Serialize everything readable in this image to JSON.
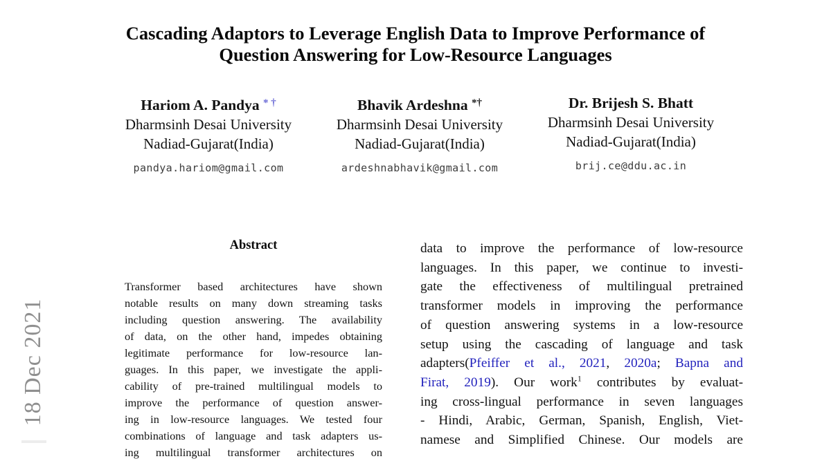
{
  "colors": {
    "link_blue": "#2323bd",
    "stamp_gray": "#8f8f8f",
    "marker_blue": "#6b6bd6",
    "marker_black": "#1a1a1a"
  },
  "arxiv_stamp": {
    "text": "18 Dec 2021"
  },
  "title": {
    "line1": "Cascading Adaptors to Leverage English Data to Improve Performance of",
    "line2": "Question Answering for Low-Resource Languages"
  },
  "authors": [
    {
      "name": "Hariom A. Pandya",
      "markers": "* †",
      "marker_color": "#6b6bd6",
      "affiliation": "Dharmsinh Desai University",
      "location": "Nadiad-Gujarat(India)",
      "email": "pandya.hariom@gmail.com"
    },
    {
      "name": "Bhavik Ardeshna",
      "markers": "*†",
      "marker_color": "#1a1a1a",
      "affiliation": "Dharmsinh Desai University",
      "location": "Nadiad-Gujarat(India)",
      "email": "ardeshnabhavik@gmail.com"
    },
    {
      "name": "Dr. Brijesh S. Bhatt",
      "markers": "",
      "marker_color": "#1a1a1a",
      "affiliation": "Dharmsinh Desai University",
      "location": "Nadiad-Gujarat(India)",
      "email": "brij.ce@ddu.ac.in"
    }
  ],
  "abstract": {
    "heading": "Abstract",
    "lines": [
      "Transformer based architectures have shown",
      "notable results on many down streaming tasks",
      "including question answering. The availability",
      "of data, on the other hand, impedes obtaining",
      "legitimate performance for low-resource lan-",
      "guages. In this paper, we investigate the appli-",
      "cability of pre-trained multilingual models to",
      "improve the performance of question answer-",
      "ing in low-resource languages. We tested four",
      "combinations of language and task adapters us-",
      "ing multilingual transformer architectures on"
    ]
  },
  "right_column": {
    "lines": [
      "data to improve the performance of low-resource",
      "languages. In this paper, we continue to investi-",
      "gate the effectiveness of multilingual pretrained",
      "transformer models in improving the performance",
      "of question answering systems in a low-resource",
      "setup using the cascading of language and task",
      {
        "segments": [
          {
            "text": "adapters("
          },
          {
            "text": "Pfeiffer et al., 2021",
            "link": true
          },
          {
            "text": ", "
          },
          {
            "text": "2020a",
            "link": true
          },
          {
            "text": "; "
          },
          {
            "text": "Bapna and",
            "link": true
          }
        ]
      },
      {
        "segments": [
          {
            "text": "Firat, 2019",
            "link": true
          },
          {
            "text": ").  Our work"
          },
          {
            "text": "1",
            "sup": true
          },
          {
            "text": " contributes by evaluat-"
          }
        ]
      },
      "ing cross-lingual performance in seven languages",
      "- Hindi, Arabic, German, Spanish, English, Viet-",
      "namese and Simplified Chinese. Our models are"
    ]
  }
}
